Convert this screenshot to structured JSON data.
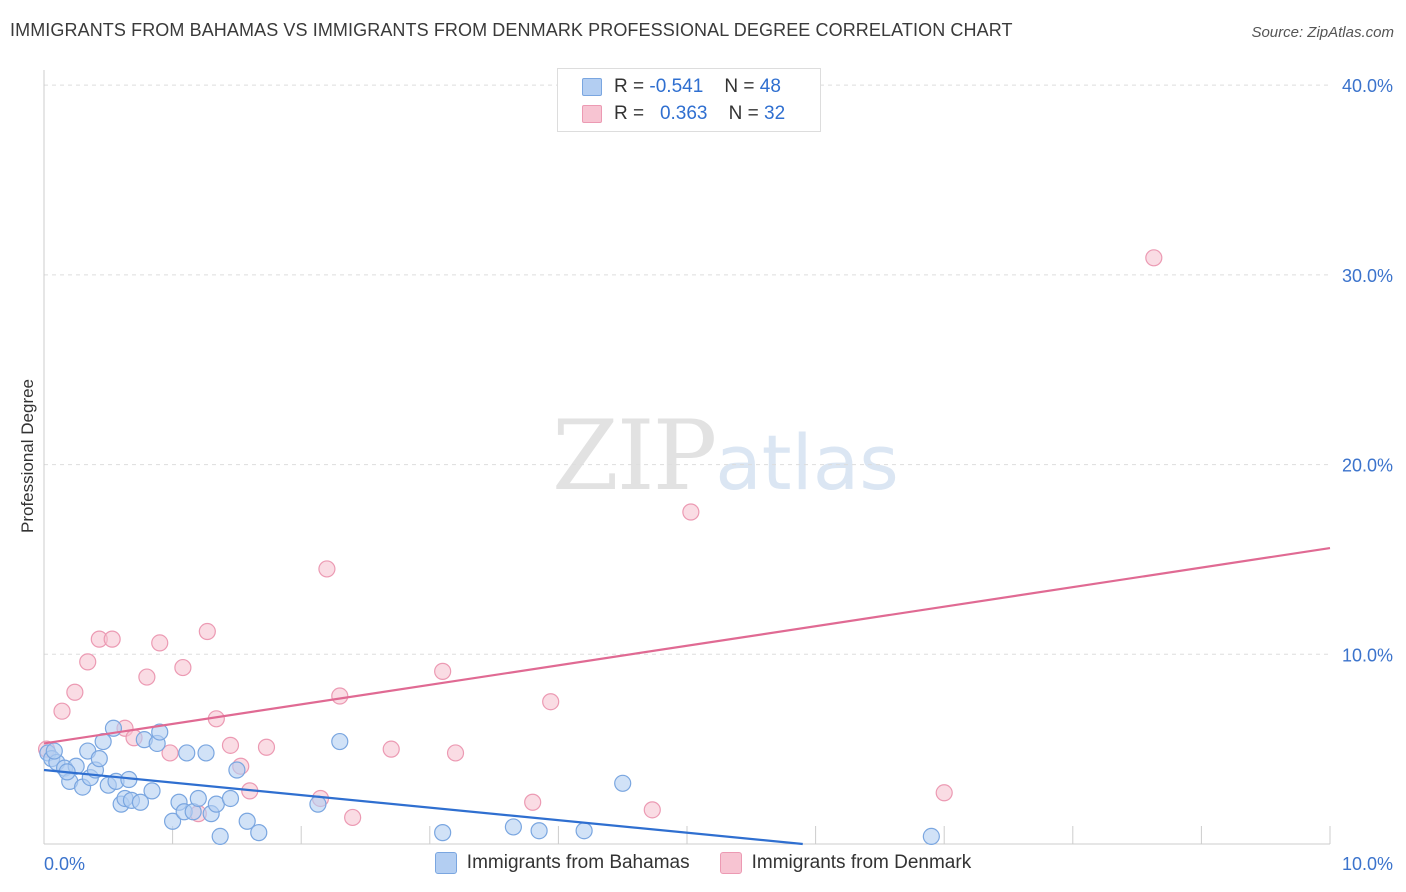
{
  "header": {
    "title": "IMMIGRANTS FROM BAHAMAS VS IMMIGRANTS FROM DENMARK PROFESSIONAL DEGREE CORRELATION CHART",
    "source": "Source: ZipAtlas.com"
  },
  "watermark": {
    "zip": "ZIP",
    "atlas": "atlas"
  },
  "legend": {
    "rows": [
      {
        "r_label": "R =",
        "r_value": "-0.541",
        "n_label": "N =",
        "n_value": "48"
      },
      {
        "r_label": "R =",
        "r_value": "0.363",
        "n_label": "N =",
        "n_value": "32"
      }
    ]
  },
  "bottom_legend": {
    "series1": "Immigrants from Bahamas",
    "series2": "Immigrants from Denmark"
  },
  "colors": {
    "bahamas_fill": "#b3cef2",
    "bahamas_stroke": "#7aa6e0",
    "bahamas_line": "#2f6fd0",
    "denmark_fill": "#f7c4d2",
    "denmark_stroke": "#ec9ab3",
    "denmark_line": "#e06a93",
    "axis_text": "#3b73cc",
    "grid": "#dddddd"
  },
  "chart_data": {
    "type": "scatter",
    "title": "IMMIGRANTS FROM BAHAMAS VS IMMIGRANTS FROM DENMARK PROFESSIONAL DEGREE CORRELATION CHART",
    "xlabel": "",
    "ylabel": "Professional Degree",
    "xlim": [
      0,
      10
    ],
    "ylim": [
      0,
      40.8
    ],
    "x_tick_labels": [
      {
        "value": 0,
        "label": "0.0%"
      },
      {
        "value": 10,
        "label": "10.0%"
      }
    ],
    "y_ticks": [
      {
        "value": 10,
        "label": "10.0%"
      },
      {
        "value": 20,
        "label": "20.0%"
      },
      {
        "value": 30,
        "label": "30.0%"
      },
      {
        "value": 40,
        "label": "40.0%"
      }
    ],
    "grid": true,
    "series": [
      {
        "name": "Immigrants from Bahamas",
        "R": -0.541,
        "N": 48,
        "trend": [
          [
            0,
            3.9
          ],
          [
            5.9,
            0.0
          ]
        ],
        "points": [
          [
            0.03,
            4.8
          ],
          [
            0.06,
            4.5
          ],
          [
            0.1,
            4.3
          ],
          [
            0.16,
            4.0
          ],
          [
            0.2,
            3.3
          ],
          [
            0.25,
            4.1
          ],
          [
            0.3,
            3.0
          ],
          [
            0.34,
            4.9
          ],
          [
            0.36,
            3.5
          ],
          [
            0.4,
            3.9
          ],
          [
            0.43,
            4.5
          ],
          [
            0.46,
            5.4
          ],
          [
            0.5,
            3.1
          ],
          [
            0.54,
            6.1
          ],
          [
            0.56,
            3.3
          ],
          [
            0.6,
            2.1
          ],
          [
            0.63,
            2.4
          ],
          [
            0.66,
            3.4
          ],
          [
            0.68,
            2.3
          ],
          [
            0.75,
            2.2
          ],
          [
            0.78,
            5.5
          ],
          [
            0.84,
            2.8
          ],
          [
            0.88,
            5.3
          ],
          [
            0.9,
            5.9
          ],
          [
            1.0,
            1.2
          ],
          [
            1.05,
            2.2
          ],
          [
            1.09,
            1.7
          ],
          [
            1.11,
            4.8
          ],
          [
            1.16,
            1.7
          ],
          [
            1.2,
            2.4
          ],
          [
            1.26,
            4.8
          ],
          [
            1.3,
            1.6
          ],
          [
            1.34,
            2.1
          ],
          [
            1.37,
            0.4
          ],
          [
            1.45,
            2.4
          ],
          [
            1.5,
            3.9
          ],
          [
            1.58,
            1.2
          ],
          [
            1.67,
            0.6
          ],
          [
            2.13,
            2.1
          ],
          [
            2.3,
            5.4
          ],
          [
            3.1,
            0.6
          ],
          [
            3.65,
            0.9
          ],
          [
            3.85,
            0.7
          ],
          [
            4.2,
            0.7
          ],
          [
            4.5,
            3.2
          ],
          [
            6.9,
            0.4
          ],
          [
            0.08,
            4.9
          ],
          [
            0.18,
            3.8
          ]
        ]
      },
      {
        "name": "Immigrants from Denmark",
        "R": 0.363,
        "N": 32,
        "trend": [
          [
            0,
            5.3
          ],
          [
            10,
            15.6
          ]
        ],
        "points": [
          [
            0.02,
            5.0
          ],
          [
            0.14,
            7.0
          ],
          [
            0.24,
            8.0
          ],
          [
            0.34,
            9.6
          ],
          [
            0.43,
            10.8
          ],
          [
            0.53,
            10.8
          ],
          [
            0.63,
            6.1
          ],
          [
            0.7,
            5.6
          ],
          [
            0.8,
            8.8
          ],
          [
            0.9,
            10.6
          ],
          [
            0.98,
            4.8
          ],
          [
            1.08,
            9.3
          ],
          [
            1.2,
            1.6
          ],
          [
            1.27,
            11.2
          ],
          [
            1.34,
            6.6
          ],
          [
            1.45,
            5.2
          ],
          [
            1.53,
            4.1
          ],
          [
            1.6,
            2.8
          ],
          [
            1.73,
            5.1
          ],
          [
            2.15,
            2.4
          ],
          [
            2.2,
            14.5
          ],
          [
            2.3,
            7.8
          ],
          [
            2.4,
            1.4
          ],
          [
            2.7,
            5.0
          ],
          [
            3.1,
            9.1
          ],
          [
            3.2,
            4.8
          ],
          [
            3.8,
            2.2
          ],
          [
            3.94,
            7.5
          ],
          [
            4.73,
            1.8
          ],
          [
            5.03,
            17.5
          ],
          [
            7.0,
            2.7
          ],
          [
            8.63,
            30.9
          ]
        ]
      }
    ]
  }
}
